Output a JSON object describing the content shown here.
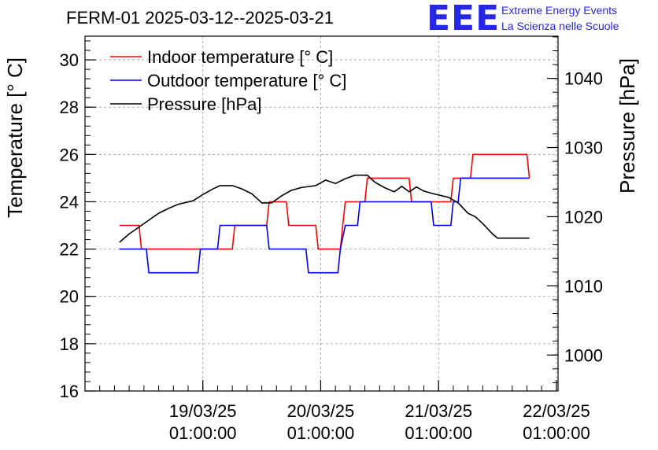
{
  "header": {
    "title": "FERM-01 2025-03-12--2025-03-21",
    "logo": {
      "mark": "EEE",
      "line1": "Extreme Energy Events",
      "line2": "La Scienza nelle Scuole",
      "color": "#2626e6"
    }
  },
  "chart_data": {
    "type": "line",
    "title": "FERM-01 2025-03-12--2025-03-21",
    "xlabel": "",
    "ylabel": "Temperature [° C]",
    "y2label": "Pressure [hPa]",
    "ylim": [
      16,
      31
    ],
    "y2lim": [
      994.8,
      1046.1
    ],
    "xlim": [
      "2025-03-18T01:00",
      "2025-03-22T01:20"
    ],
    "x_ticks": [
      {
        "x": "2025-03-19T01:00",
        "line1": "19/03/25",
        "line2": "01:00:00"
      },
      {
        "x": "2025-03-20T01:00",
        "line1": "20/03/25",
        "line2": "01:00:00"
      },
      {
        "x": "2025-03-21T01:00",
        "line1": "21/03/25",
        "line2": "01:00:00"
      },
      {
        "x": "2025-03-22T01:00",
        "line1": "22/03/25",
        "line2": "01:00:00"
      }
    ],
    "y_ticks": [
      16,
      18,
      20,
      22,
      24,
      26,
      28,
      30
    ],
    "y2_ticks": [
      1000,
      1010,
      1020,
      1030,
      1040
    ],
    "grid": true,
    "legend_position": "top-left",
    "series": [
      {
        "name": "Indoor temperature [° C]",
        "axis": "left",
        "color": "#ff0000",
        "points": [
          [
            "2025-03-18T08:00",
            23
          ],
          [
            "2025-03-18T12:00",
            23
          ],
          [
            "2025-03-18T12:30",
            22
          ],
          [
            "2025-03-18T20:00",
            22
          ],
          [
            "2025-03-19T07:00",
            22
          ],
          [
            "2025-03-19T07:30",
            23
          ],
          [
            "2025-03-19T14:00",
            23
          ],
          [
            "2025-03-19T14:30",
            24
          ],
          [
            "2025-03-19T18:00",
            24
          ],
          [
            "2025-03-19T18:30",
            23
          ],
          [
            "2025-03-20T00:00",
            23
          ],
          [
            "2025-03-20T00:30",
            22
          ],
          [
            "2025-03-20T05:00",
            22
          ],
          [
            "2025-03-20T05:30",
            23
          ],
          [
            "2025-03-20T06:00",
            24
          ],
          [
            "2025-03-20T10:00",
            24
          ],
          [
            "2025-03-20T10:30",
            25
          ],
          [
            "2025-03-20T19:00",
            25
          ],
          [
            "2025-03-20T19:30",
            24
          ],
          [
            "2025-03-21T03:30",
            24
          ],
          [
            "2025-03-21T04:00",
            25
          ],
          [
            "2025-03-21T07:30",
            25
          ],
          [
            "2025-03-21T08:00",
            26
          ],
          [
            "2025-03-21T19:00",
            26
          ],
          [
            "2025-03-21T19:30",
            25
          ]
        ]
      },
      {
        "name": "Outdoor temperature [° C]",
        "axis": "left",
        "color": "#0000ff",
        "points": [
          [
            "2025-03-18T08:00",
            22
          ],
          [
            "2025-03-18T13:30",
            22
          ],
          [
            "2025-03-18T14:00",
            21
          ],
          [
            "2025-03-18T23:30",
            21
          ],
          [
            "2025-03-19T00:00",
            21
          ],
          [
            "2025-03-19T00:30",
            22
          ],
          [
            "2025-03-19T04:00",
            22
          ],
          [
            "2025-03-19T04:30",
            23
          ],
          [
            "2025-03-19T14:00",
            23
          ],
          [
            "2025-03-19T14:30",
            22
          ],
          [
            "2025-03-19T22:00",
            22
          ],
          [
            "2025-03-19T22:30",
            21
          ],
          [
            "2025-03-20T04:30",
            21
          ],
          [
            "2025-03-20T05:00",
            22
          ],
          [
            "2025-03-20T06:00",
            23
          ],
          [
            "2025-03-20T08:30",
            23
          ],
          [
            "2025-03-20T09:00",
            24
          ],
          [
            "2025-03-20T23:30",
            24
          ],
          [
            "2025-03-21T00:00",
            23
          ],
          [
            "2025-03-21T03:30",
            23
          ],
          [
            "2025-03-21T04:00",
            24
          ],
          [
            "2025-03-21T05:00",
            24
          ],
          [
            "2025-03-21T05:30",
            25
          ],
          [
            "2025-03-21T19:30",
            25
          ]
        ]
      },
      {
        "name": "Pressure [hPa]",
        "axis": "right",
        "color": "#000000",
        "points": [
          [
            "2025-03-18T08:00",
            1016.3
          ],
          [
            "2025-03-18T10:00",
            1017.5
          ],
          [
            "2025-03-18T12:00",
            1018.5
          ],
          [
            "2025-03-18T14:00",
            1019.5
          ],
          [
            "2025-03-18T16:00",
            1020.5
          ],
          [
            "2025-03-18T18:00",
            1021.2
          ],
          [
            "2025-03-18T20:00",
            1021.8
          ],
          [
            "2025-03-18T23:00",
            1022.3
          ],
          [
            "2025-03-19T01:00",
            1023.2
          ],
          [
            "2025-03-19T03:00",
            1024.0
          ],
          [
            "2025-03-19T04:30",
            1024.5
          ],
          [
            "2025-03-19T07:00",
            1024.5
          ],
          [
            "2025-03-19T09:00",
            1024.0
          ],
          [
            "2025-03-19T11:00",
            1023.3
          ],
          [
            "2025-03-19T13:00",
            1022.0
          ],
          [
            "2025-03-19T15:00",
            1022.0
          ],
          [
            "2025-03-19T17:00",
            1023.0
          ],
          [
            "2025-03-19T19:00",
            1023.8
          ],
          [
            "2025-03-19T21:00",
            1024.2
          ],
          [
            "2025-03-20T00:00",
            1024.5
          ],
          [
            "2025-03-20T02:00",
            1025.3
          ],
          [
            "2025-03-20T04:00",
            1024.8
          ],
          [
            "2025-03-20T06:00",
            1025.5
          ],
          [
            "2025-03-20T08:00",
            1026.0
          ],
          [
            "2025-03-20T10:30",
            1026.0
          ],
          [
            "2025-03-20T12:00",
            1025.0
          ],
          [
            "2025-03-20T14:00",
            1024.2
          ],
          [
            "2025-03-20T16:00",
            1023.6
          ],
          [
            "2025-03-20T17:30",
            1024.4
          ],
          [
            "2025-03-20T19:00",
            1023.6
          ],
          [
            "2025-03-20T20:30",
            1024.3
          ],
          [
            "2025-03-20T22:00",
            1023.7
          ],
          [
            "2025-03-21T00:00",
            1023.3
          ],
          [
            "2025-03-21T03:00",
            1022.8
          ],
          [
            "2025-03-21T05:00",
            1022.0
          ],
          [
            "2025-03-21T07:00",
            1020.5
          ],
          [
            "2025-03-21T08:30",
            1020.0
          ],
          [
            "2025-03-21T10:00",
            1019.0
          ],
          [
            "2025-03-21T12:00",
            1017.5
          ],
          [
            "2025-03-21T13:00",
            1016.9
          ],
          [
            "2025-03-21T19:30",
            1016.9
          ]
        ]
      }
    ]
  }
}
